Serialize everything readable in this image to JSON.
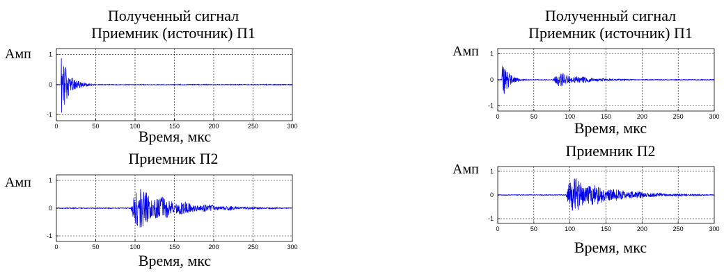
{
  "chart_data": [
    {
      "type": "line",
      "title": "Полученный сигнал",
      "subtitle": "Приемник (источник) П1",
      "xlabel": "Время, мкс",
      "ylabel": "Амп",
      "xlim": [
        0,
        300
      ],
      "ylim": [
        -1.2,
        1.2
      ],
      "xticks": [
        0,
        50,
        100,
        150,
        200,
        250,
        300
      ],
      "yticks": [
        1,
        0,
        -1
      ],
      "grid": true,
      "color": "#0000ee",
      "bursts": [
        {
          "start": 6,
          "end": 60,
          "peak": 1.0,
          "decay": 0.09,
          "env": "sharp"
        }
      ]
    },
    {
      "type": "line",
      "title": "",
      "subtitle": "Приемник П2",
      "xlabel": "Время, мкс",
      "ylabel": "Амп",
      "xlim": [
        0,
        300
      ],
      "ylim": [
        -1.2,
        1.2
      ],
      "xticks": [
        0,
        50,
        100,
        150,
        200,
        250,
        300
      ],
      "yticks": [
        1,
        0,
        -1
      ],
      "grid": true,
      "color": "#0000ee",
      "bursts": [
        {
          "start": 94,
          "end": 295,
          "peak": 0.95,
          "decay": 0.02,
          "env": "smooth"
        }
      ]
    },
    {
      "type": "line",
      "title": "Полученный сигнал",
      "subtitle": "Приемник (источник) П1",
      "xlabel": "Время, мкс",
      "ylabel": "Амп",
      "xlim": [
        0,
        300
      ],
      "ylim": [
        -1.2,
        1.2
      ],
      "xticks": [
        0,
        50,
        100,
        150,
        200,
        250,
        300
      ],
      "yticks": [
        1,
        0,
        -1
      ],
      "grid": true,
      "color": "#0000ee",
      "bursts": [
        {
          "start": 6,
          "end": 40,
          "peak": 0.95,
          "decay": 0.12,
          "env": "sharp"
        },
        {
          "start": 76,
          "end": 260,
          "peak": 0.35,
          "decay": 0.025,
          "env": "smooth"
        }
      ]
    },
    {
      "type": "line",
      "title": "",
      "subtitle": "Приемник П2",
      "xlabel": "Время, мкс",
      "ylabel": "Амп",
      "xlim": [
        0,
        300
      ],
      "ylim": [
        -1.2,
        1.2
      ],
      "xticks": [
        0,
        50,
        100,
        150,
        200,
        250,
        300
      ],
      "yticks": [
        1,
        0,
        -1
      ],
      "grid": true,
      "color": "#0000ee",
      "bursts": [
        {
          "start": 94,
          "end": 295,
          "peak": 0.92,
          "decay": 0.018,
          "env": "smooth"
        }
      ]
    }
  ]
}
